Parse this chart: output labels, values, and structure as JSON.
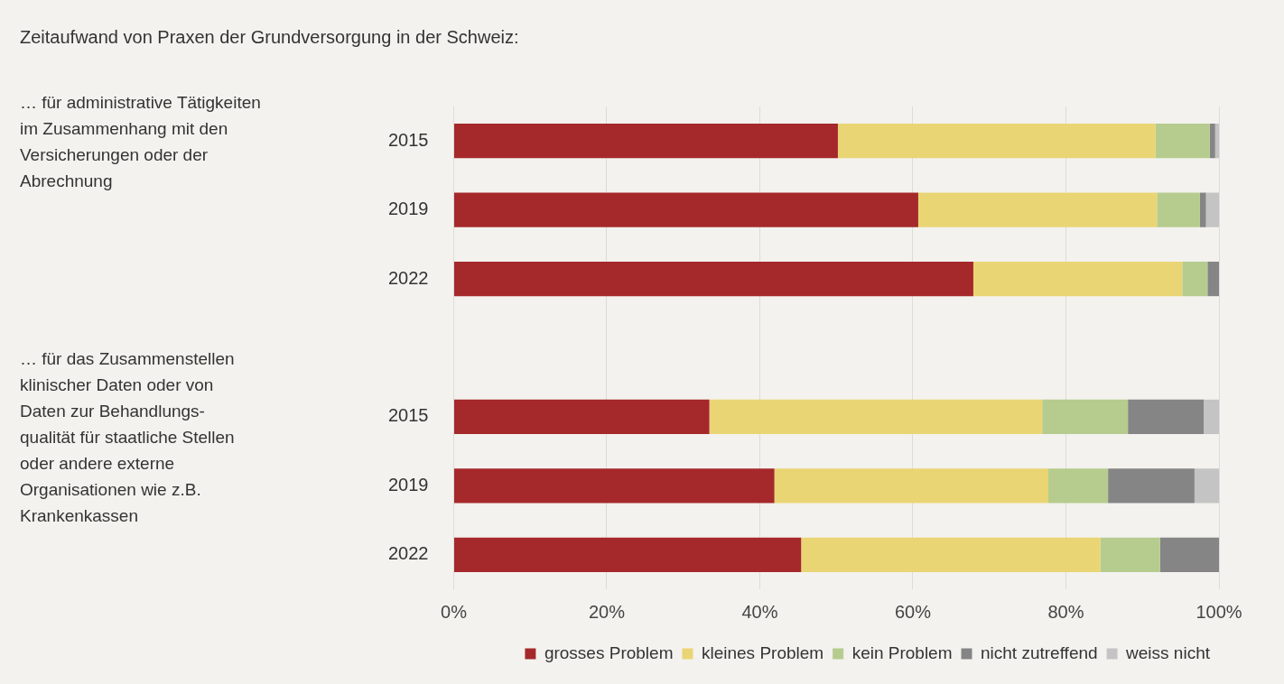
{
  "chart_data": {
    "type": "bar",
    "orientation": "horizontal",
    "stacked": true,
    "title": "Zeitaufwand von Praxen der Grundversorgung in der Schweiz:",
    "categories": [
      "2015",
      "2019",
      "2022",
      null,
      "2015",
      "2019",
      "2022"
    ],
    "series": [
      {
        "name": "grosses Problem",
        "color": "#a5282b",
        "values": [
          50.2,
          60.7,
          67.9,
          null,
          33.4,
          41.9,
          45.4
        ]
      },
      {
        "name": "kleines Problem",
        "color": "#ead574",
        "values": [
          41.5,
          31.2,
          27.3,
          null,
          43.5,
          35.8,
          39.1
        ]
      },
      {
        "name": "kein Problem",
        "color": "#b5cc8e",
        "values": [
          7.1,
          5.6,
          3.3,
          null,
          11.2,
          7.8,
          7.8
        ]
      },
      {
        "name": "nicht zutreffend",
        "color": "#858585",
        "values": [
          0.7,
          0.8,
          1.5,
          null,
          9.9,
          11.3,
          7.7
        ]
      },
      {
        "name": "weiss nicht",
        "color": "#c4c4c4",
        "values": [
          0.5,
          1.7,
          0,
          null,
          2.0,
          3.2,
          0
        ]
      }
    ],
    "xlim": [
      0,
      100
    ],
    "xticks": [
      {
        "value": 0,
        "label": "0%"
      },
      {
        "value": 20,
        "label": "20%"
      },
      {
        "value": 40,
        "label": "40%"
      },
      {
        "value": 60,
        "label": "60%"
      },
      {
        "value": 80,
        "label": "80%"
      },
      {
        "value": 100,
        "label": "100%"
      }
    ],
    "grid": "x",
    "legend": "bottom right",
    "annotations": [
      "… für administrative Tätigkeiten\nim Zusammenhang mit den\nVersicherungen oder der\nAbrechnung",
      "… für das Zusammenstellen\nklinischer Daten oder von\nDaten zur Behandlungs-\nqualität für staatliche Stellen\noder andere externe\nOrganisationen wie z.B.\nKrankenkassen"
    ]
  }
}
